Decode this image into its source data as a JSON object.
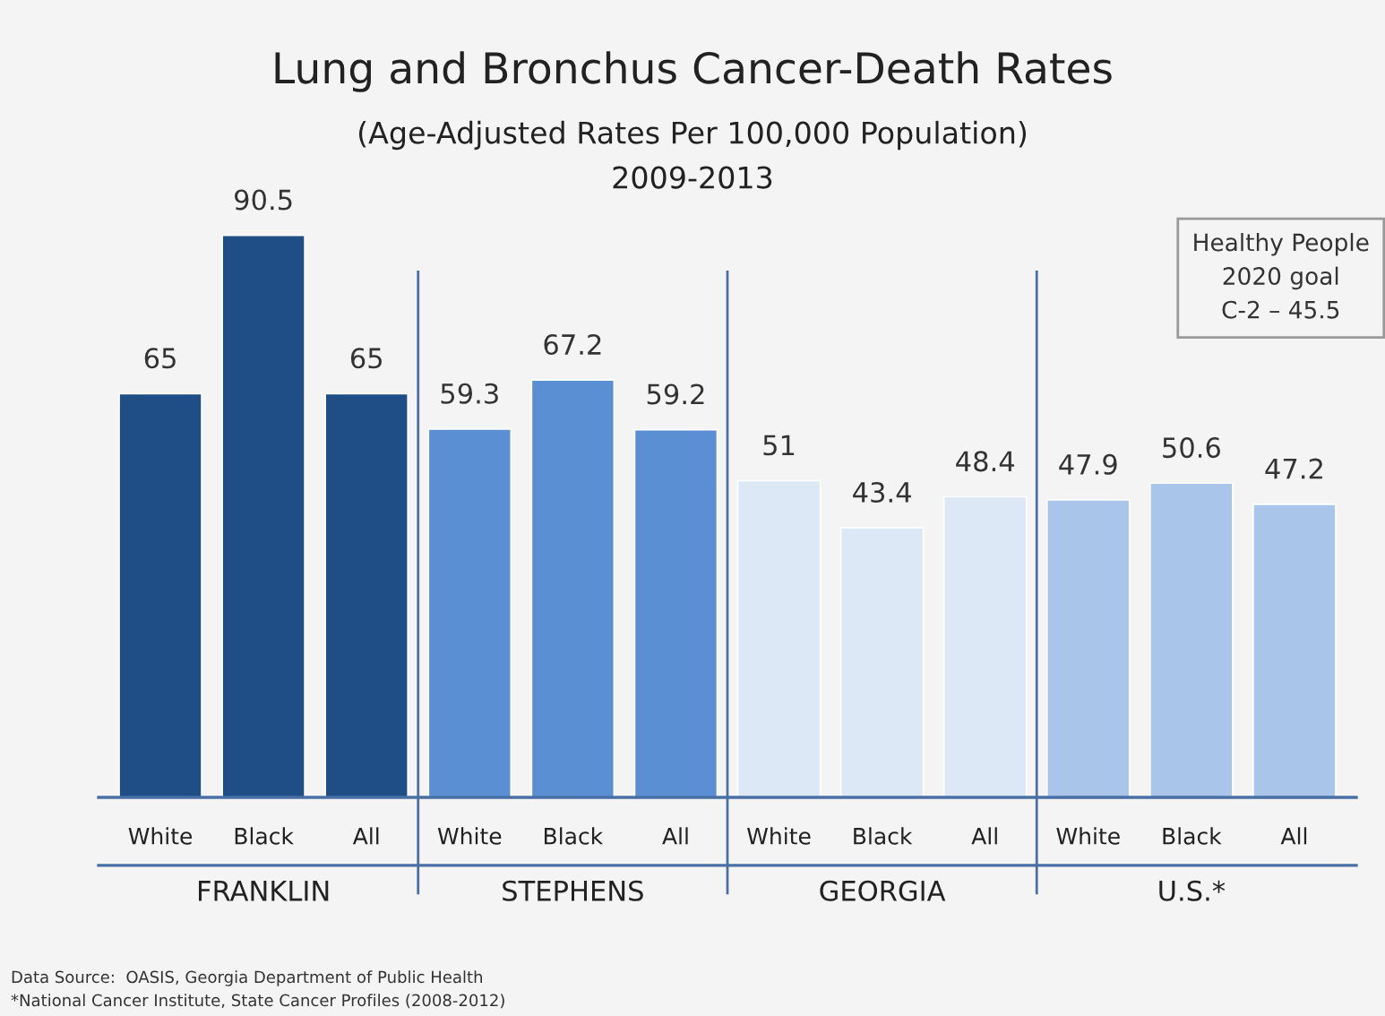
{
  "chart_data": {
    "type": "bar",
    "title": "Lung and Bronchus Cancer-Death Rates",
    "subtitle": "(Age-Adjusted Rates Per 100,000 Population)\n2009-2013",
    "categories": [
      "White",
      "Black",
      "All",
      "White",
      "Black",
      "All",
      "White",
      "Black",
      "All",
      "White",
      "Black",
      "All"
    ],
    "values": [
      65,
      90.5,
      65,
      59.3,
      67.2,
      59.2,
      51,
      43.4,
      48.4,
      47.9,
      50.6,
      47.2
    ],
    "colors": [
      "#1f4e86",
      "#1f4e86",
      "#1f4e86",
      "#5b8fd3",
      "#5b8fd3",
      "#5b8fd3",
      "#dce8f6",
      "#dce8f6",
      "#dce8f6",
      "#a9c6ea",
      "#a9c6ea",
      "#a9c6ea"
    ],
    "data_labels": true,
    "grid": false,
    "legend": false,
    "tick_labels": "x",
    "annotations": [
      "FRANKLIN",
      "STEPHENS",
      "GEORGIA",
      "U.S.*",
      "Healthy People\n2020 goal\nC-2 – 45.5",
      "Data Source:  OASIS, Georgia Department of Public Health",
      "*National Cancer Institute, State Cancer Profiles (2008-2012)"
    ]
  }
}
